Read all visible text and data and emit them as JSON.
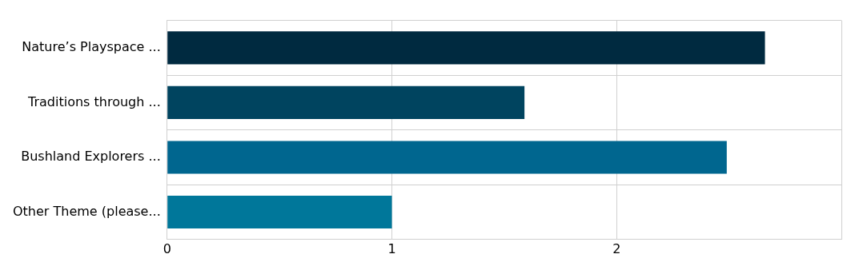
{
  "chart_data": {
    "type": "bar",
    "orientation": "horizontal",
    "categories": [
      "Nature’s Playspace ...",
      "Traditions through ...",
      "Bushland Explorers ...",
      "Other Theme (please..."
    ],
    "values": [
      2.66,
      1.59,
      2.49,
      1.0
    ],
    "colors": [
      "#002a40",
      "#00445f",
      "#00668f",
      "#00779a"
    ],
    "xlim": [
      0,
      3
    ],
    "xticks": [
      0,
      1,
      2,
      {
        "value": 3,
        "label": null
      }
    ],
    "grid": true,
    "legend": false
  }
}
